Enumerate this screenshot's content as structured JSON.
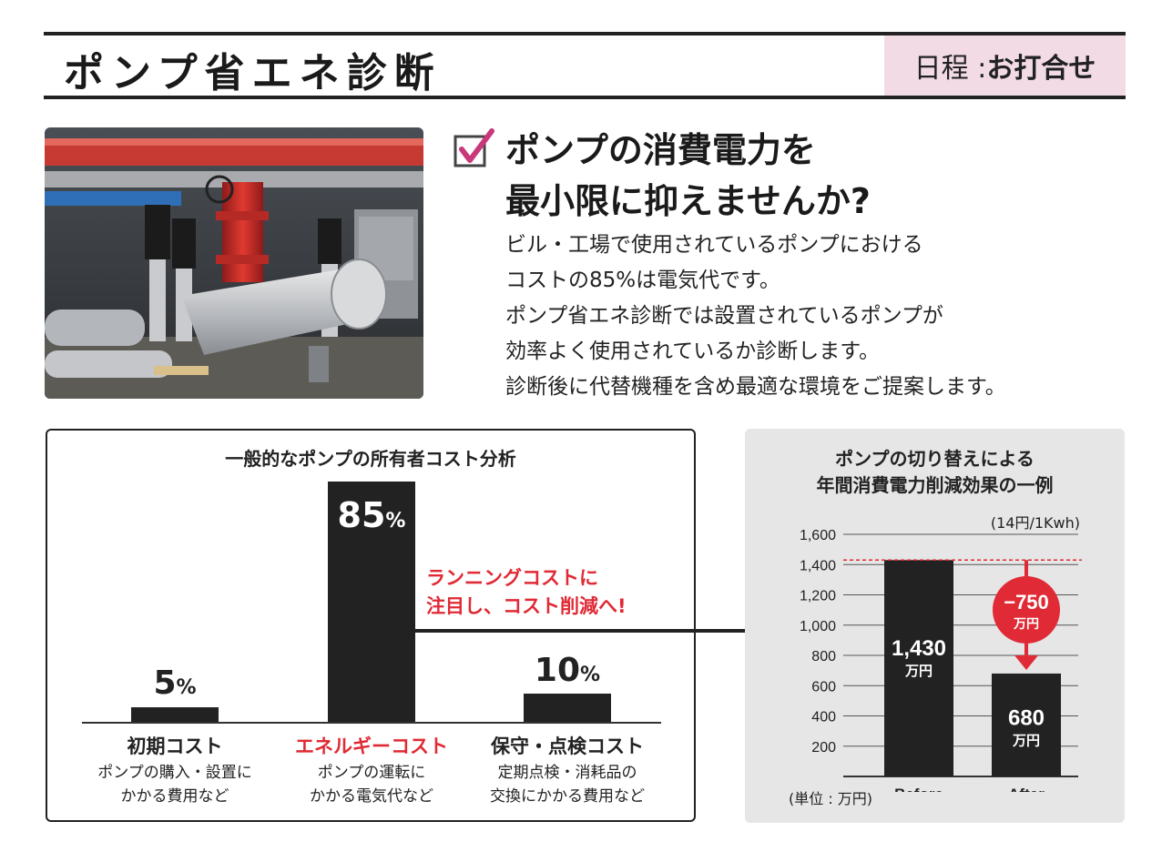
{
  "header": {
    "title": "ポンプ省エネ診断",
    "schedule_label": "日程 : ",
    "schedule_value": "お打合せ"
  },
  "intro": {
    "headline_line1": "ポンプの消費電力を",
    "headline_line2": "最小限に抑えませんか?",
    "body": [
      "ビル・工場で使用されているポンプにおける",
      "コストの85%は電気代です。",
      "ポンプ省エネ診断では設置されているポンプが",
      "効率よく使用されているか診断します。",
      "診断後に代替機種を含め最適な環境をご提案します。"
    ]
  },
  "cost_analysis": {
    "title": "一般的なポンプの所有者コスト分析",
    "callout_line1": "ランニングコストに",
    "callout_line2": "注目し、コスト削減へ!",
    "items": [
      {
        "pct_num": "5",
        "pct_sign": "%",
        "label": "初期コスト",
        "desc1": "ポンプの購入・設置に",
        "desc2": "かかる費用など"
      },
      {
        "pct_num": "85",
        "pct_sign": "%",
        "label": "エネルギーコスト",
        "desc1": "ポンプの運転に",
        "desc2": "かかる電気代など"
      },
      {
        "pct_num": "10",
        "pct_sign": "%",
        "label": "保守・点検コスト",
        "desc1": "定期点検・消耗品の",
        "desc2": "交換にかかる費用など"
      }
    ]
  },
  "effect": {
    "title_line1": "ポンプの切り替えによる",
    "title_line2": "年間消費電力削減効果の一例",
    "unit_note": "(14円/1Kwh)",
    "unit_label": "(単位 : 万円)",
    "reduction_value": "−750",
    "reduction_unit": "万円"
  },
  "chart_data": [
    {
      "type": "bar",
      "title": "一般的なポンプの所有者コスト分析",
      "categories": [
        "初期コスト",
        "エネルギーコスト",
        "保守・点検コスト"
      ],
      "values": [
        5,
        85,
        10
      ],
      "unit": "%"
    },
    {
      "type": "bar",
      "title": "ポンプの切り替えによる年間消費電力削減効果の一例",
      "categories": [
        "Before",
        "After"
      ],
      "values": [
        1430,
        680
      ],
      "value_labels": [
        "1,430",
        "680"
      ],
      "value_unit": "万円",
      "ylim": [
        0,
        1600
      ],
      "yticks": [
        200,
        400,
        600,
        800,
        1000,
        1200,
        1400,
        1600
      ],
      "ytick_labels": [
        "200",
        "400",
        "600",
        "800",
        "1,000",
        "1,200",
        "1,400",
        "1,600"
      ],
      "grid": true
    }
  ],
  "colors": {
    "accent_red": "#e02a35",
    "schedule_bg": "#f3dbe6",
    "check_pink": "#c8387a",
    "panel_gray": "#e6e6e6",
    "bar_dark": "#222222"
  }
}
